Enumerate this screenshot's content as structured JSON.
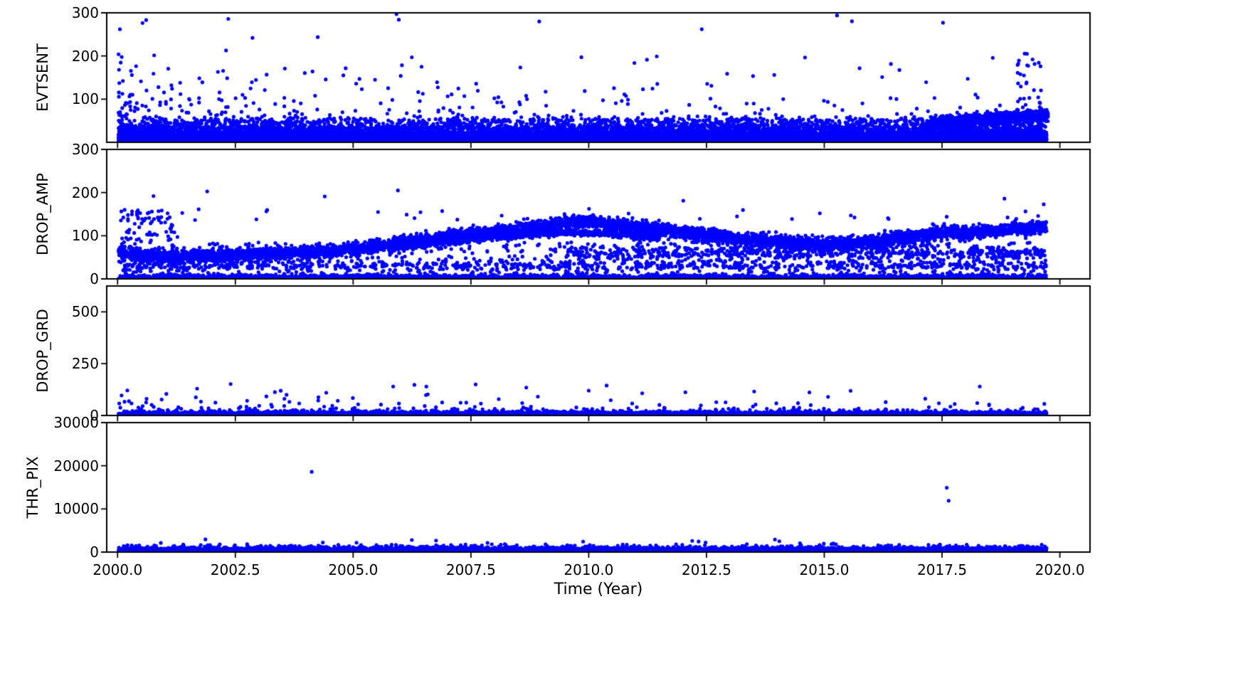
{
  "figure": {
    "background": "#ffffff",
    "marker_color": "#0000ff",
    "axis_color": "#000000",
    "xlabel": "Time (Year)",
    "xlim": [
      1999.77,
      2020.64
    ],
    "xticks": [
      2000.0,
      2002.5,
      2005.0,
      2007.5,
      2010.0,
      2012.5,
      2015.0,
      2017.5,
      2020.0
    ],
    "xtick_labels": [
      "2000.0",
      "2002.5",
      "2005.0",
      "2007.5",
      "2010.0",
      "2012.5",
      "2015.0",
      "2017.5",
      "2020.0"
    ],
    "data_x_range": [
      2000.02,
      2019.72
    ]
  },
  "chart_data": [
    {
      "type": "scatter",
      "ylabel": "EVTSENT",
      "ylim": [
        0,
        300
      ],
      "yticks": [
        {
          "value": 300,
          "label": "300"
        },
        {
          "value": 200,
          "label": "200"
        },
        {
          "value": 100,
          "label": "100"
        }
      ],
      "layers": [
        {
          "kind": "halfnormal",
          "n": 8000,
          "y0": 0.5,
          "sigma": 17
        },
        {
          "kind": "halfnormal",
          "n": 4000,
          "y0": 0.5,
          "sigma": 7
        },
        {
          "kind": "line",
          "n": 900,
          "y": 12,
          "sigma": 3
        },
        {
          "kind": "line",
          "n": 900,
          "y": 22,
          "sigma": 3.5
        },
        {
          "kind": "line",
          "n": 900,
          "y": 34,
          "sigma": 4
        },
        {
          "kind": "line",
          "n": 700,
          "y": 48,
          "sigma": 5
        },
        {
          "kind": "trend",
          "n": 1500,
          "x": [
            2017.25,
            2019.75
          ],
          "y_start": 46,
          "y_end": 63,
          "sigma": 6
        },
        {
          "kind": "tail",
          "n": 250,
          "x_power": 1.7,
          "y_min": 58,
          "scale": 55,
          "y_max": 300
        },
        {
          "kind": "uniform",
          "n": 25,
          "x": [
            2019.1,
            2019.6
          ],
          "y": [
            80,
            210
          ]
        },
        {
          "kind": "points",
          "pts": [
            [
              2000.05,
              262
            ],
            [
              2002.35,
              286
            ],
            [
              2005.92,
              297
            ],
            [
              2005.97,
              284
            ],
            [
              2008.95,
              280
            ],
            [
              2012.4,
              262
            ],
            [
              2017.52,
              277
            ],
            [
              2019.3,
              205
            ],
            [
              2019.42,
              192
            ]
          ]
        }
      ]
    },
    {
      "type": "scatter",
      "ylabel": "DROP_AMP",
      "ylim": [
        0,
        300
      ],
      "yticks": [
        {
          "value": 300,
          "label": "300"
        },
        {
          "value": 200,
          "label": "200"
        },
        {
          "value": 100,
          "label": "100"
        },
        {
          "value": 0,
          "label": "0"
        }
      ],
      "layers": [
        {
          "kind": "curve",
          "n": 6000,
          "sigma": 7,
          "points": [
            [
              2000.0,
              62
            ],
            [
              2000.6,
              55
            ],
            [
              2001.3,
              51
            ],
            [
              2002.2,
              55
            ],
            [
              2003.2,
              58
            ],
            [
              2004.2,
              62
            ],
            [
              2005.0,
              68
            ],
            [
              2005.7,
              78
            ],
            [
              2006.3,
              88
            ],
            [
              2007.0,
              99
            ],
            [
              2007.6,
              106
            ],
            [
              2008.3,
              112
            ],
            [
              2009.0,
              122
            ],
            [
              2009.5,
              131
            ],
            [
              2009.9,
              133
            ],
            [
              2010.3,
              128
            ],
            [
              2010.9,
              121
            ],
            [
              2011.5,
              114
            ],
            [
              2012.2,
              105
            ],
            [
              2013.0,
              95
            ],
            [
              2013.8,
              88
            ],
            [
              2014.6,
              83
            ],
            [
              2015.3,
              80
            ],
            [
              2016.0,
              87
            ],
            [
              2016.8,
              97
            ],
            [
              2017.4,
              105
            ],
            [
              2017.7,
              110
            ],
            [
              2017.9,
              103
            ],
            [
              2018.3,
              110
            ],
            [
              2018.8,
              114
            ],
            [
              2019.3,
              118
            ],
            [
              2019.72,
              122
            ]
          ]
        },
        {
          "kind": "curve",
          "n": 800,
          "sigma": 3.5,
          "points": [
            [
              2005.8,
              72
            ],
            [
              2006.5,
              80
            ],
            [
              2007.3,
              90
            ],
            [
              2008.2,
              98
            ],
            [
              2009.0,
              104
            ],
            [
              2009.6,
              108
            ],
            [
              2010.2,
              106
            ],
            [
              2010.9,
              100
            ],
            [
              2011.5,
              94
            ]
          ],
          "x": [
            2005.8,
            2011.5
          ]
        },
        {
          "kind": "halfnormal",
          "n": 2600,
          "y0": 0.5,
          "sigma": 4.5
        },
        {
          "kind": "line",
          "n": 650,
          "y": 30,
          "sigma": 6
        },
        {
          "kind": "line",
          "n": 550,
          "y": 60,
          "sigma": 8,
          "x": [
            2009.5,
            2019.72
          ]
        },
        {
          "kind": "uniform",
          "n": 650,
          "y": [
            8,
            85
          ]
        },
        {
          "kind": "uniform",
          "n": 70,
          "x": [
            2000.02,
            2001.3
          ],
          "y": [
            85,
            160
          ]
        },
        {
          "kind": "tail",
          "n": 40,
          "y_min": 135,
          "scale": 22,
          "y_max": 205
        },
        {
          "kind": "points",
          "pts": [
            [
              2005.95,
              205
            ],
            [
              2000.15,
              160
            ],
            [
              2000.22,
              148
            ]
          ]
        }
      ]
    },
    {
      "type": "scatter",
      "ylabel": "DROP_GRD",
      "ylim": [
        0,
        625
      ],
      "yticks": [
        {
          "value": 500,
          "label": "500"
        },
        {
          "value": 250,
          "label": "250"
        },
        {
          "value": 0,
          "label": "0"
        }
      ],
      "layers": [
        {
          "kind": "halfnormal",
          "n": 8000,
          "y0": 0,
          "sigma": 6
        },
        {
          "kind": "halfnormal",
          "n": 2000,
          "y0": 0,
          "sigma": 12
        },
        {
          "kind": "tail",
          "n": 110,
          "x_power": 1.6,
          "y_min": 30,
          "scale": 33,
          "y_max": 170
        },
        {
          "kind": "points",
          "pts": [
            [
              2002.4,
              152
            ],
            [
              2005.85,
              140
            ],
            [
              2006.3,
              148
            ],
            [
              2007.6,
              150
            ],
            [
              2010.0,
              120
            ],
            [
              2018.3,
              140
            ]
          ]
        }
      ]
    },
    {
      "type": "scatter",
      "ylabel": "THR_PIX",
      "ylim": [
        0,
        30000
      ],
      "yticks": [
        {
          "value": 30000,
          "label": "30000"
        },
        {
          "value": 20000,
          "label": "20000"
        },
        {
          "value": 10000,
          "label": "10000"
        },
        {
          "value": 0,
          "label": "0"
        }
      ],
      "layers": [
        {
          "kind": "halfnormal",
          "n": 8000,
          "y0": 150,
          "sigma": 420
        },
        {
          "kind": "tail",
          "n": 85,
          "y_min": 1400,
          "scale": 450,
          "y_max": 3200
        },
        {
          "kind": "points",
          "pts": [
            [
              2004.12,
              18600
            ],
            [
              2017.6,
              14900
            ],
            [
              2017.64,
              11900
            ]
          ]
        }
      ]
    }
  ]
}
